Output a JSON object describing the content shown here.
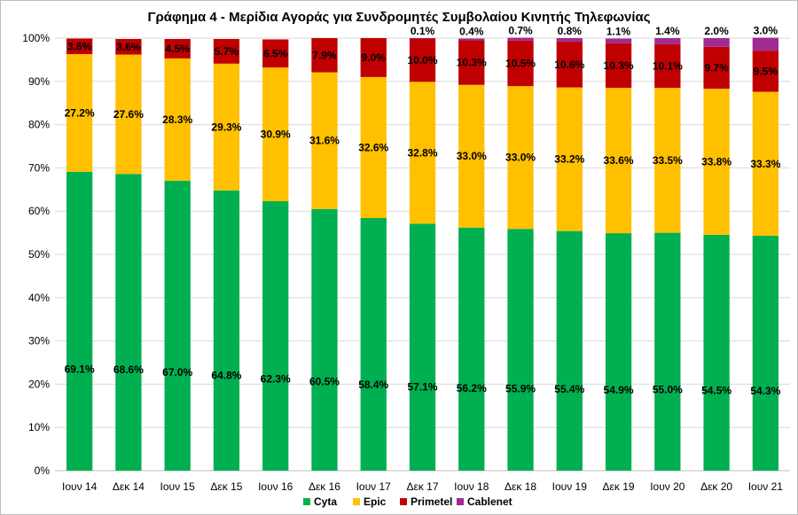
{
  "chart_data": {
    "type": "bar",
    "stacked": true,
    "title": "Γράφημα 4 - Μερίδια Αγοράς για Συνδρομητές Συμβολαίου Κινητής Τηλεφωνίας",
    "xlabel": "",
    "ylabel": "",
    "ylim": [
      0,
      100
    ],
    "y_ticks": [
      "0%",
      "10%",
      "20%",
      "30%",
      "40%",
      "50%",
      "60%",
      "70%",
      "80%",
      "90%",
      "100%"
    ],
    "grid": true,
    "legend_position": "bottom",
    "categories": [
      "Ιουν 14",
      "Δεκ 14",
      "Ιουν 15",
      "Δεκ 15",
      "Ιουν 16",
      "Δεκ 16",
      "Ιουν 17",
      "Δεκ 17",
      "Ιουν 18",
      "Δεκ 18",
      "Ιουν 19",
      "Δεκ 19",
      "Ιουν 20",
      "Δεκ 20",
      "Ιουν 21"
    ],
    "series": [
      {
        "name": "Cyta",
        "color": "#00b050",
        "values": [
          69.1,
          68.6,
          67.0,
          64.8,
          62.3,
          60.5,
          58.4,
          57.1,
          56.2,
          55.9,
          55.4,
          54.9,
          55.0,
          54.5,
          54.3
        ],
        "labels": [
          "69.1%",
          "68.6%",
          "67.0%",
          "64.8%",
          "62.3%",
          "60.5%",
          "58.4%",
          "57.1%",
          "56.2%",
          "55.9%",
          "55.4%",
          "54.9%",
          "55.0%",
          "54.5%",
          "54.3%"
        ]
      },
      {
        "name": "Epic",
        "color": "#ffc000",
        "values": [
          27.2,
          27.6,
          28.3,
          29.3,
          30.9,
          31.6,
          32.6,
          32.8,
          33.0,
          33.0,
          33.2,
          33.6,
          33.5,
          33.8,
          33.3
        ],
        "labels": [
          "27.2%",
          "27.6%",
          "28.3%",
          "29.3%",
          "30.9%",
          "31.6%",
          "32.6%",
          "32.8%",
          "33.0%",
          "33.0%",
          "33.2%",
          "33.6%",
          "33.5%",
          "33.8%",
          "33.3%"
        ]
      },
      {
        "name": "Primetel",
        "color": "#c00000",
        "values": [
          3.6,
          3.6,
          4.5,
          5.7,
          6.5,
          7.9,
          9.0,
          10.0,
          10.3,
          10.5,
          10.6,
          10.3,
          10.1,
          9.7,
          9.5
        ],
        "labels": [
          "3.6%",
          "3.6%",
          "4.5%",
          "5.7%",
          "6.5%",
          "7.9%",
          "9.0%",
          "10.0%",
          "10.3%",
          "10.5%",
          "10.6%",
          "10.3%",
          "10.1%",
          "9.7%",
          "9.5%"
        ]
      },
      {
        "name": "Cablenet",
        "color": "#a02b93",
        "values": [
          0,
          0,
          0,
          0,
          0,
          0,
          0,
          0.1,
          0.4,
          0.7,
          0.8,
          1.1,
          1.4,
          2.0,
          3.0
        ],
        "labels": [
          "",
          "",
          "",
          "",
          "",
          "",
          "",
          "0.1%",
          "0.4%",
          "0.7%",
          "0.8%",
          "1.1%",
          "1.4%",
          "2.0%",
          "3.0%"
        ]
      }
    ]
  }
}
